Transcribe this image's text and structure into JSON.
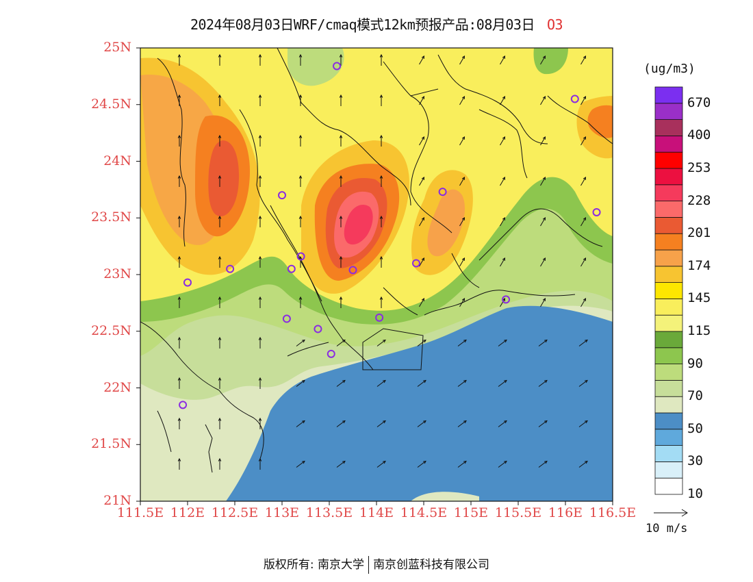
{
  "title": {
    "text": "2024年08月03日WRF/cmaq模式12km预报产品:08月03日",
    "variable": "O3"
  },
  "map": {
    "lat_ticks": [
      "25N",
      "24.5N",
      "24N",
      "23.5N",
      "23N",
      "22.5N",
      "22N",
      "21.5N",
      "21N"
    ],
    "lon_ticks": [
      "111.5E",
      "112E",
      "112.5E",
      "113E",
      "113.5E",
      "114E",
      "114.5E",
      "115E",
      "115.5E",
      "116E",
      "116.5E"
    ],
    "lat_range": [
      21,
      25
    ],
    "lon_range": [
      111.5,
      116.5
    ],
    "label_color": "#e04848",
    "station_color": "#8a2be2",
    "stations": [
      {
        "lon": 113.58,
        "lat": 24.84
      },
      {
        "lon": 116.1,
        "lat": 24.55
      },
      {
        "lon": 113.0,
        "lat": 23.7
      },
      {
        "lon": 114.7,
        "lat": 23.73
      },
      {
        "lon": 116.33,
        "lat": 23.55
      },
      {
        "lon": 112.45,
        "lat": 23.05
      },
      {
        "lon": 112.0,
        "lat": 22.93
      },
      {
        "lon": 113.1,
        "lat": 23.05
      },
      {
        "lon": 113.2,
        "lat": 23.16
      },
      {
        "lon": 113.75,
        "lat": 23.04
      },
      {
        "lon": 114.42,
        "lat": 23.1
      },
      {
        "lon": 113.05,
        "lat": 22.61
      },
      {
        "lon": 113.38,
        "lat": 22.52
      },
      {
        "lon": 113.52,
        "lat": 22.3
      },
      {
        "lon": 114.03,
        "lat": 22.62
      },
      {
        "lon": 115.37,
        "lat": 22.78
      },
      {
        "lon": 111.95,
        "lat": 21.85
      }
    ]
  },
  "legend": {
    "unit": "(ug/m3)",
    "labels": [
      "670",
      "400",
      "253",
      "228",
      "201",
      "174",
      "145",
      "115",
      "90",
      "70",
      "50",
      "30",
      "10"
    ],
    "colors": [
      "#ffffff",
      "#d9f0f9",
      "#a3dcf4",
      "#5fa9dc",
      "#4c8ec6",
      "#dfe8c0",
      "#c7de9a",
      "#bddc7c",
      "#8dc64e",
      "#6aa93a",
      "#f4f27a",
      "#f9ee5c",
      "#fde600",
      "#f7c431",
      "#f7a24a",
      "#f58020",
      "#ea5a33",
      "#fb6a6a",
      "#f53a5c",
      "#ec1040",
      "#ff0000",
      "#c8107a",
      "#a8305c",
      "#9a2fc8",
      "#7b2ff0"
    ]
  },
  "wind_reference": {
    "label": "10 m/s"
  },
  "footer": {
    "left": "版权所有: 南京大学",
    "right": "南京创蓝科技有限公司"
  }
}
